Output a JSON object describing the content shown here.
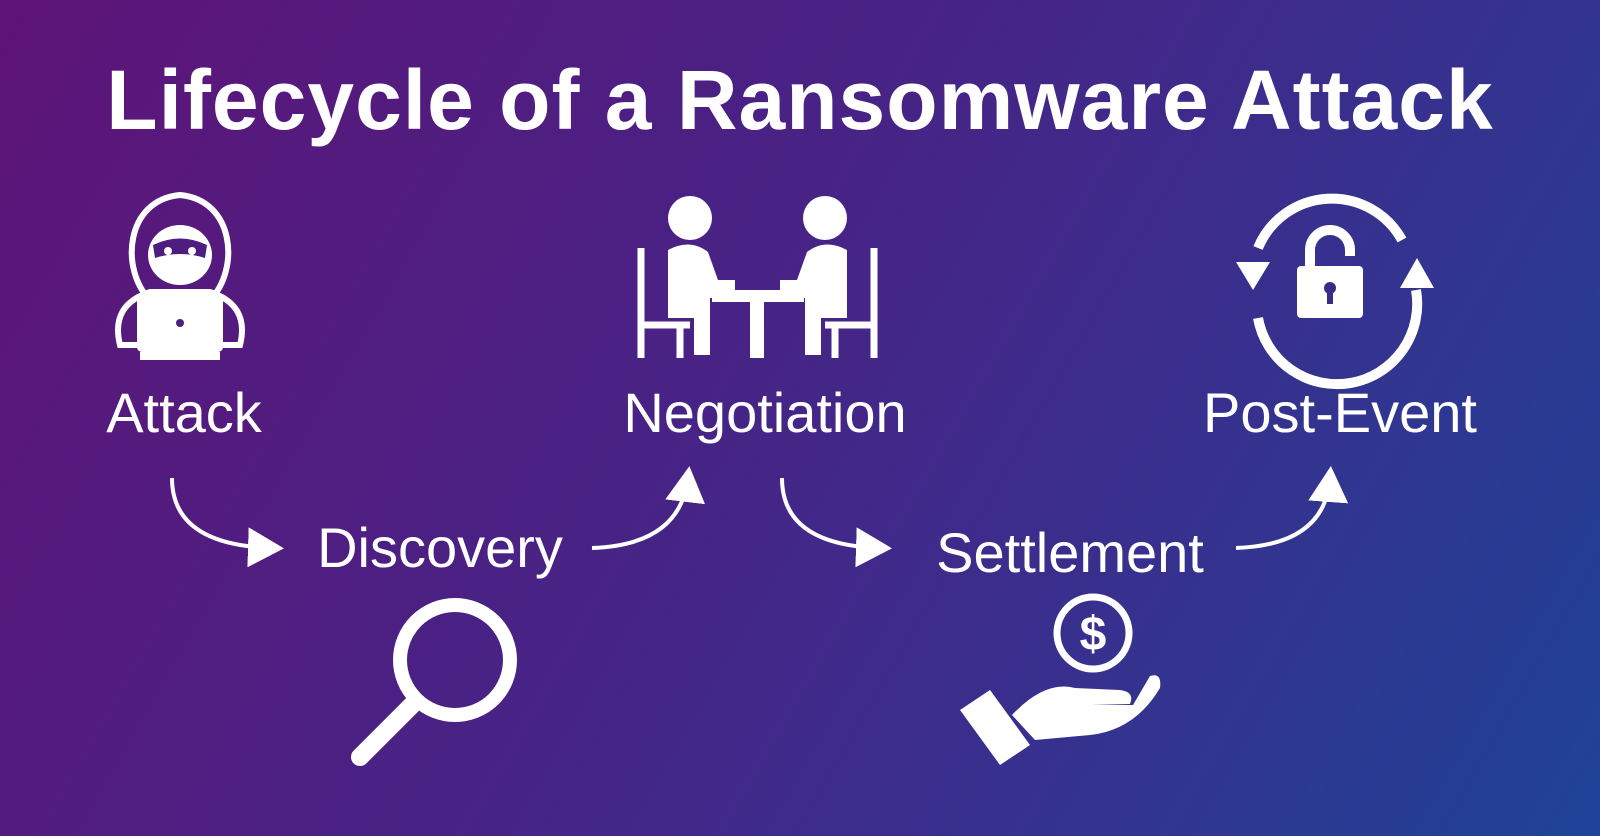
{
  "title": "Lifecycle of a Ransomware Attack",
  "stages": {
    "attack": "Attack",
    "discovery": "Discovery",
    "negotiation": "Negotiation",
    "settlement": "Settlement",
    "post_event": "Post-Event"
  },
  "icons": {
    "attack": "hacker-laptop-icon",
    "discovery": "magnifying-glass-icon",
    "negotiation": "meeting-table-icon",
    "settlement": "hand-coin-icon",
    "post_event": "unlock-cycle-icon"
  },
  "colors": {
    "background_start": "#5e1478",
    "background_end": "#1f4398",
    "foreground": "#ffffff"
  }
}
